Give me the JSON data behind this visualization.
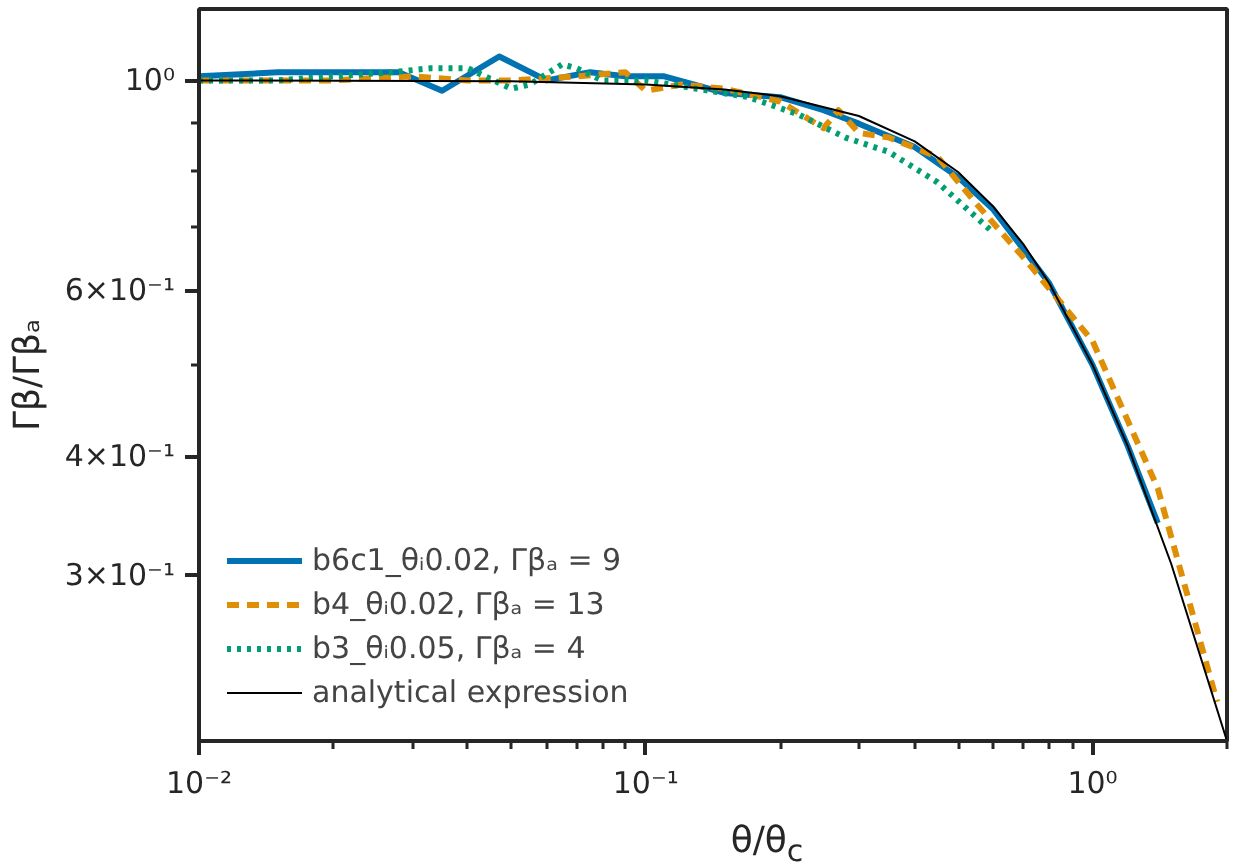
{
  "chart_data": {
    "type": "line",
    "xlabel": "θ/θ$_{c}$",
    "ylabel": "Γβ/Γβₐ",
    "log": "xy",
    "grid": false,
    "legend": "bottom left",
    "xlim": [
      0.01,
      2
    ],
    "ylim": [
      0.2,
      1.19
    ],
    "xticks": [
      {
        "value": 0.01,
        "label": "10⁻²"
      },
      {
        "value": 0.02,
        "label": null
      },
      {
        "value": 0.03,
        "label": null
      },
      {
        "value": 0.04,
        "label": null
      },
      {
        "value": 0.05,
        "label": null
      },
      {
        "value": 0.06,
        "label": null
      },
      {
        "value": 0.07,
        "label": null
      },
      {
        "value": 0.08,
        "label": null
      },
      {
        "value": 0.09,
        "label": null
      },
      {
        "value": 0.1,
        "label": "10⁻¹"
      },
      {
        "value": 0.2,
        "label": null
      },
      {
        "value": 0.3,
        "label": null
      },
      {
        "value": 0.4,
        "label": null
      },
      {
        "value": 0.5,
        "label": null
      },
      {
        "value": 0.6,
        "label": null
      },
      {
        "value": 0.7,
        "label": null
      },
      {
        "value": 0.8,
        "label": null
      },
      {
        "value": 0.9,
        "label": null
      },
      {
        "value": 1,
        "label": "10⁰"
      },
      {
        "value": 2,
        "label": null
      }
    ],
    "yticks": [
      {
        "value": 0.3,
        "label": "3×10⁻¹"
      },
      {
        "value": 0.4,
        "label": "4×10⁻¹"
      },
      {
        "value": 0.5,
        "label": null
      },
      {
        "value": 0.6,
        "label": "6×10⁻¹"
      },
      {
        "value": 0.7,
        "label": null
      },
      {
        "value": 0.8,
        "label": null
      },
      {
        "value": 0.9,
        "label": null
      },
      {
        "value": 1,
        "label": "10⁰"
      }
    ],
    "series": [
      {
        "name": "b6c1_θᵢ0.02, Γβₐ = 9",
        "color": "#0173b2",
        "line_style": "solid",
        "x": [
          0.01,
          0.015,
          0.02,
          0.028,
          0.035,
          0.047,
          0.06,
          0.075,
          0.09,
          0.11,
          0.15,
          0.2,
          0.25,
          0.3,
          0.4,
          0.5,
          0.6,
          0.8,
          1.0,
          1.2,
          1.4
        ],
        "values": [
          1.01,
          1.02,
          1.02,
          1.02,
          0.975,
          1.06,
          1.0,
          1.02,
          1.01,
          1.01,
          0.97,
          0.96,
          0.93,
          0.9,
          0.85,
          0.79,
          0.73,
          0.61,
          0.5,
          0.41,
          0.34
        ]
      },
      {
        "name": "b4_θᵢ0.02, Γβₐ = 13",
        "color": "#de8f05",
        "line_style": "dashed",
        "x": [
          0.01,
          0.015,
          0.02,
          0.03,
          0.04,
          0.05,
          0.07,
          0.09,
          0.1,
          0.12,
          0.15,
          0.2,
          0.25,
          0.27,
          0.3,
          0.35,
          0.45,
          0.55,
          0.7,
          1.0,
          1.4,
          1.9
        ],
        "values": [
          1.0,
          1.0,
          1.0,
          1.01,
          1.0,
          1.0,
          1.01,
          1.02,
          0.975,
          0.99,
          0.98,
          0.95,
          0.89,
          0.93,
          0.88,
          0.87,
          0.83,
          0.74,
          0.65,
          0.53,
          0.37,
          0.22
        ]
      },
      {
        "name": "b3_θᵢ0.05, Γβₐ = 4",
        "color": "#029e73",
        "line_style": "dotted",
        "x": [
          0.01,
          0.015,
          0.02,
          0.027,
          0.033,
          0.04,
          0.05,
          0.055,
          0.065,
          0.07,
          0.08,
          0.1,
          0.13,
          0.17,
          0.22,
          0.28,
          0.35,
          0.45,
          0.6
        ],
        "values": [
          1.0,
          1.0,
          1.01,
          1.02,
          1.03,
          1.03,
          0.98,
          0.99,
          1.04,
          1.03,
          1.0,
          1.0,
          0.98,
          0.96,
          0.92,
          0.87,
          0.84,
          0.78,
          0.69
        ]
      },
      {
        "name": "analytical expression",
        "color": "#000000",
        "line_style": "solid",
        "x": [
          0.01,
          0.05,
          0.1,
          0.15,
          0.2,
          0.3,
          0.4,
          0.5,
          0.6,
          0.7,
          0.8,
          1.0,
          1.2,
          1.5,
          2.0
        ],
        "values": [
          1.0,
          0.998,
          0.99,
          0.978,
          0.962,
          0.917,
          0.862,
          0.8,
          0.735,
          0.671,
          0.61,
          0.5,
          0.41,
          0.308,
          0.2
        ]
      }
    ]
  }
}
